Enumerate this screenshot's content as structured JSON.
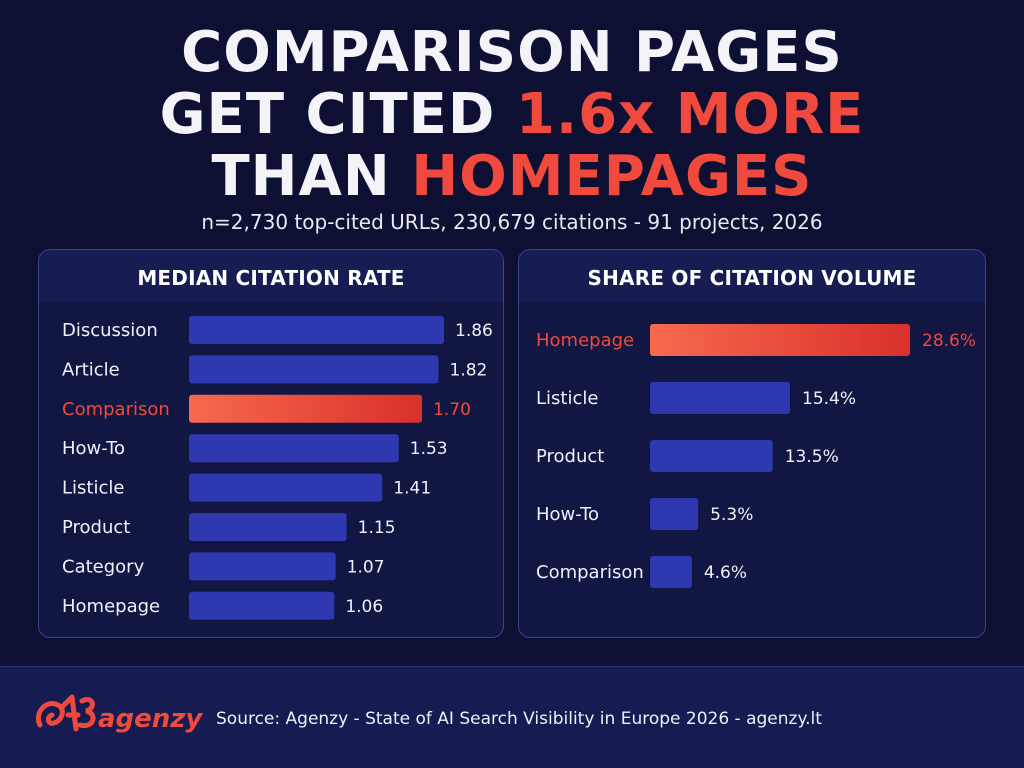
{
  "headline": {
    "line1": "COMPARISON PAGES",
    "line2_a": "GET CITED ",
    "line2_b": "1.6x MORE",
    "line3_a": "THAN ",
    "line3_b": "HOMEPAGES"
  },
  "subtitle": "n=2,730 top-cited URLs, 230,679 citations - 91 projects, 2026",
  "colors": {
    "background": "#0d1033",
    "bar_blue": "#2e38b0",
    "highlight_red": "#ef4a3c",
    "label_white": "#f0f1f8"
  },
  "chart_data": [
    {
      "type": "bar",
      "orientation": "horizontal",
      "title": "MEDIAN CITATION RATE",
      "categories": [
        "Discussion",
        "Article",
        "Comparison",
        "How-To",
        "Listicle",
        "Product",
        "Category",
        "Homepage"
      ],
      "values": [
        1.86,
        1.82,
        1.7,
        1.53,
        1.41,
        1.15,
        1.07,
        1.06
      ],
      "value_labels": [
        "1.86",
        "1.82",
        "1.70",
        "1.53",
        "1.41",
        "1.15",
        "1.07",
        "1.06"
      ],
      "highlight": "Comparison",
      "xlim": [
        0,
        1.86
      ],
      "grid": false
    },
    {
      "type": "bar",
      "orientation": "horizontal",
      "title": "SHARE OF CITATION VOLUME",
      "categories": [
        "Homepage",
        "Listicle",
        "Product",
        "How-To",
        "Comparison"
      ],
      "values": [
        28.6,
        15.4,
        13.5,
        5.3,
        4.6
      ],
      "value_labels": [
        "28.6%",
        "15.4%",
        "13.5%",
        "5.3%",
        "4.6%"
      ],
      "highlight": "Homepage",
      "xlim": [
        0,
        28.6
      ],
      "grid": false
    }
  ],
  "footer": {
    "logo_text": "agenzy",
    "source": "Source: Agenzy - State of AI Search Visibility in Europe 2026 - agenzy.lt"
  }
}
